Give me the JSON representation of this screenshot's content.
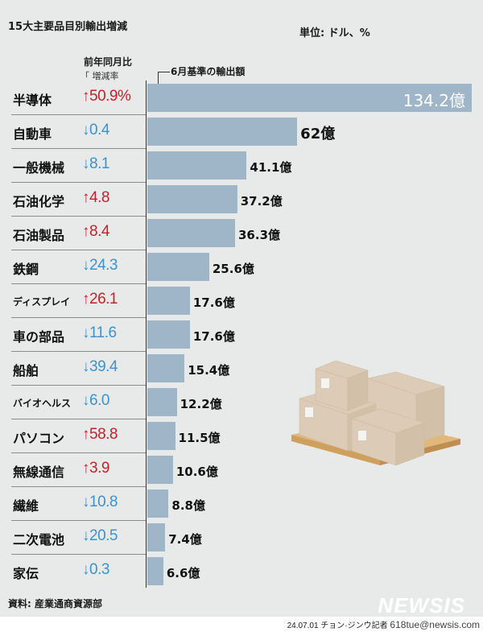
{
  "header": {
    "title": "15大主要品目別輸出増減",
    "unit": "単位: ドル、%",
    "rate_header_1": "前年同月比",
    "rate_header_2": "「 増減率",
    "amount_header": "6月基準の輸出額"
  },
  "footer": {
    "source": "資料: 産業通商資源部",
    "logo": "NEWSIS",
    "credit": "24.07.01 チョン·ジンウ記者",
    "email": "618tue@newsis.com"
  },
  "colors": {
    "background": "#e8eaea",
    "bar": "#9fb5c8",
    "up": "#c4202b",
    "down": "#3b92cc"
  },
  "icons": {
    "up": "arrow-up-icon",
    "down": "arrow-down-icon",
    "illustration": "pallet-boxes"
  },
  "chart_data": {
    "type": "bar",
    "orientation": "horizontal",
    "value_unit": "億",
    "categories": [
      "半導体",
      "自動車",
      "一般機械",
      "石油化学",
      "石油製品",
      "鉄鋼",
      "ディスプレイ",
      "車の部品",
      "船舶",
      "バイオヘルス",
      "パソコン",
      "無線通信",
      "繊維",
      "二次電池",
      "家伝"
    ],
    "values": [
      134.2,
      62,
      41.1,
      37.2,
      36.3,
      25.6,
      17.6,
      17.6,
      15.4,
      12.2,
      11.5,
      10.6,
      8.8,
      7.4,
      6.6
    ],
    "value_labels": [
      "134.2億",
      "62億",
      "41.1億",
      "37.2億",
      "36.3億",
      "25.6億",
      "17.6億",
      "17.6億",
      "15.4億",
      "12.2億",
      "11.5億",
      "10.6億",
      "8.8億",
      "7.4億",
      "6.6億"
    ],
    "change_direction": [
      "up",
      "down",
      "down",
      "up",
      "up",
      "down",
      "up",
      "down",
      "down",
      "down",
      "up",
      "up",
      "down",
      "down",
      "down"
    ],
    "change_labels": [
      "50.9%",
      "0.4",
      "8.1",
      "4.8",
      "8.4",
      "24.3",
      "26.1",
      "11.6",
      "39.4",
      "6.0",
      "58.8",
      "3.9",
      "10.8",
      "20.5",
      "0.3"
    ],
    "xlim": [
      0,
      134.2
    ]
  }
}
